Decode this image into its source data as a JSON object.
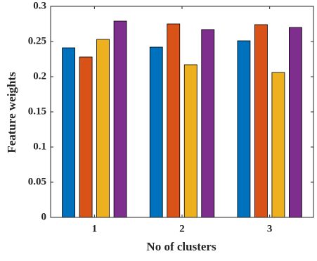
{
  "chart_data": {
    "type": "bar",
    "xlabel": "No of clusters",
    "ylabel": "Feature weights",
    "categories": [
      "1",
      "2",
      "3"
    ],
    "series": [
      {
        "color": "#0072BD",
        "values": [
          0.241,
          0.242,
          0.251
        ]
      },
      {
        "color": "#D95319",
        "values": [
          0.228,
          0.275,
          0.274
        ]
      },
      {
        "color": "#EDB120",
        "values": [
          0.253,
          0.217,
          0.206
        ]
      },
      {
        "color": "#7E2F8E",
        "values": [
          0.279,
          0.267,
          0.27
        ]
      }
    ],
    "ylim": [
      0,
      0.3
    ],
    "yticks": [
      0,
      0.05,
      0.1,
      0.15,
      0.2,
      0.25,
      0.3
    ],
    "grid": false
  }
}
